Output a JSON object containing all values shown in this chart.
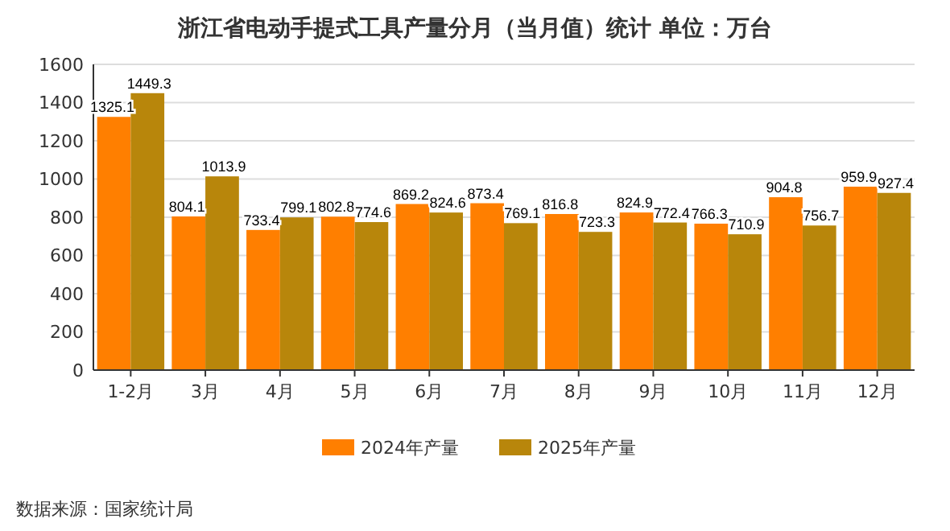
{
  "chart_data": {
    "type": "bar",
    "title": "浙江省电动手提式工具产量分月（当月值）统计  单位：万台",
    "categories": [
      "1-2月",
      "3月",
      "4月",
      "5月",
      "6月",
      "7月",
      "8月",
      "9月",
      "10月",
      "11月",
      "12月"
    ],
    "series": [
      {
        "name": "2024年产量",
        "color": "#ff7f00",
        "values": [
          1325.1,
          804.1,
          733.4,
          802.8,
          869.2,
          873.4,
          816.8,
          824.9,
          766.3,
          904.8,
          959.9
        ]
      },
      {
        "name": "2025年产量",
        "color": "#b8860b",
        "values": [
          1449.3,
          1013.9,
          799.1,
          774.6,
          824.6,
          769.1,
          723.3,
          772.4,
          710.9,
          756.7,
          927.4
        ]
      }
    ],
    "ylim": [
      0,
      1600
    ],
    "yticks": [
      0,
      200,
      400,
      600,
      800,
      1000,
      1200,
      1400,
      1600
    ],
    "grid": "y",
    "legend": "bottom",
    "data_labels": true,
    "annotations": [
      "数据来源：国家统计局"
    ]
  }
}
